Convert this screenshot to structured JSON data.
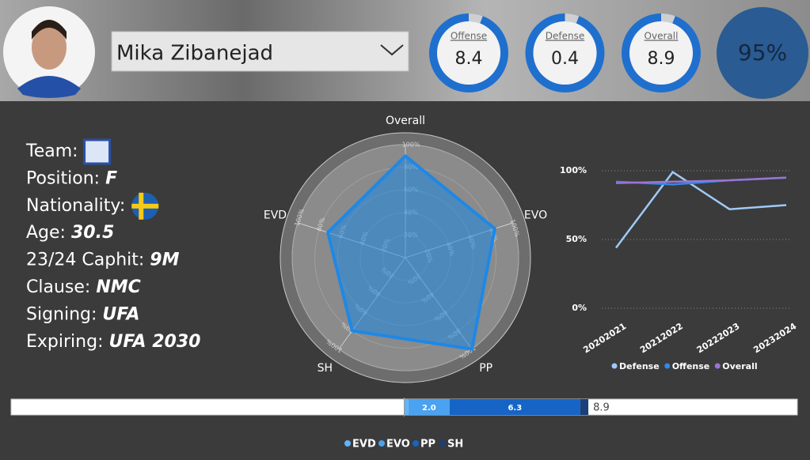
{
  "header": {
    "name": "Mika Zibanejad",
    "gauges": [
      {
        "label": "Offense",
        "value": 8.4
      },
      {
        "label": "Defense",
        "value": 0.4
      },
      {
        "label": "Overall",
        "value": 8.9
      }
    ],
    "score": "95%"
  },
  "profile": [
    {
      "label": "Team:"
    },
    {
      "label": "Position:",
      "value": "F"
    },
    {
      "label": "Nationality:"
    },
    {
      "label": "Age:",
      "value": "30.5"
    },
    {
      "label": "23/24 Caphit:",
      "value": "9M"
    },
    {
      "label": "Clause:",
      "value": "NMC"
    },
    {
      "label": "Signing:",
      "value": "UFA"
    },
    {
      "label": "Expiring:",
      "value": "UFA 2030"
    }
  ],
  "chart_data": [
    {
      "type": "radar",
      "categories": [
        "Overall",
        "EVO",
        "PP",
        "SH",
        "EVD"
      ],
      "values": [
        90,
        83,
        100,
        80,
        72
      ],
      "color": "#1e88e5",
      "rlim": [
        0,
        100
      ],
      "rticks": [
        {
          "value": 20,
          "label": "20%"
        },
        {
          "value": 40,
          "label": "40%"
        },
        {
          "value": 60,
          "label": "60%"
        },
        {
          "value": 80,
          "label": "80%"
        },
        {
          "value": 100,
          "label": "100%"
        }
      ]
    },
    {
      "type": "line",
      "categories": [
        "20202021",
        "20212022",
        "20222023",
        "20232024"
      ],
      "series": [
        {
          "name": "Defense",
          "color": "#9fcaf6",
          "values": [
            44,
            99,
            72,
            75
          ]
        },
        {
          "name": "Offense",
          "color": "#2f8ae6",
          "values": [
            92,
            90,
            93,
            95
          ]
        },
        {
          "name": "Overall",
          "color": "#9c72d6",
          "values": [
            91,
            92,
            93,
            95
          ]
        }
      ],
      "ylim": [
        0,
        100
      ],
      "yticks": [
        {
          "value": 0,
          "label": "0%"
        },
        {
          "value": 50,
          "label": "50%"
        },
        {
          "value": 100,
          "label": "100%"
        }
      ],
      "grid": true
    },
    {
      "type": "stacked_bar",
      "series": [
        {
          "name": "EVD",
          "color": "#62b3f5",
          "values": [
            0.2
          ]
        },
        {
          "name": "EVO",
          "color": "#4aa2f0",
          "values": [
            2.0
          ],
          "value_labels": [
            "2.0"
          ]
        },
        {
          "name": "PP",
          "color": "#1665c6",
          "values": [
            6.3
          ]
        },
        {
          "name": "SH",
          "color": "#1b3f7a",
          "values": [
            0.4
          ]
        }
      ],
      "total": 8.9,
      "xlim": [
        -19,
        19
      ]
    }
  ]
}
